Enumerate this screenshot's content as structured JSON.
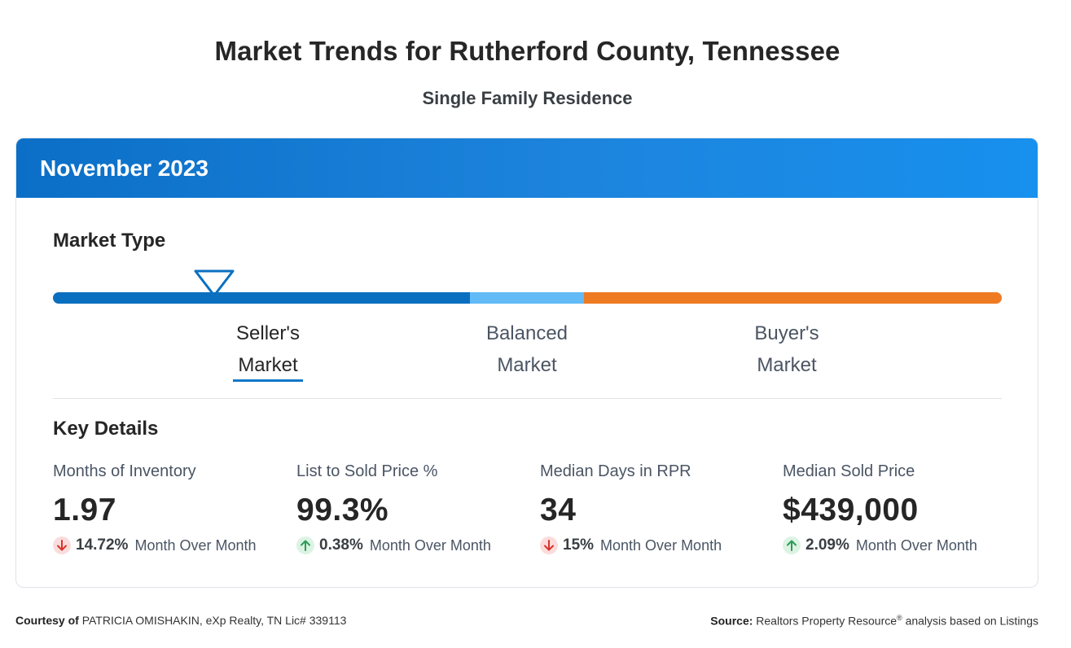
{
  "title": "Market Trends for Rutherford County, Tennessee",
  "subtitle": "Single Family Residence",
  "period": "November 2023",
  "market_type": {
    "heading": "Market Type",
    "selected": "Seller's Market",
    "segments": [
      {
        "line1": "Seller's",
        "line2": "Market",
        "color": "#0b6fc0"
      },
      {
        "line1": "Balanced",
        "line2": "Market",
        "color": "#62baf6"
      },
      {
        "line1": "Buyer's",
        "line2": "Market",
        "color": "#ee7b22"
      }
    ]
  },
  "key_details": {
    "heading": "Key Details",
    "items": [
      {
        "label": "Months of Inventory",
        "value": "1.97",
        "direction": "down",
        "change": "14.72%",
        "change_text": "Month Over Month"
      },
      {
        "label": "List to Sold Price %",
        "value": "99.3%",
        "direction": "up",
        "change": "0.38%",
        "change_text": "Month Over Month"
      },
      {
        "label": "Median Days in RPR",
        "value": "34",
        "direction": "down",
        "change": "15%",
        "change_text": "Month Over Month"
      },
      {
        "label": "Median Sold Price",
        "value": "$439,000",
        "direction": "up",
        "change": "2.09%",
        "change_text": "Month Over Month"
      }
    ]
  },
  "footer": {
    "courtesy_label": "Courtesy of",
    "courtesy_text": "PATRICIA OMISHAKIN, eXp Realty, TN Lic# 339113",
    "source_label": "Source:",
    "source_text": "Realtors Property Resource",
    "source_mark": "®",
    "source_tail": "analysis based on Listings"
  },
  "colors": {
    "header_gradient_start": "#0b6fc7",
    "header_gradient_end": "#1790ee",
    "down": "#d9342b",
    "up": "#2a9d55"
  }
}
